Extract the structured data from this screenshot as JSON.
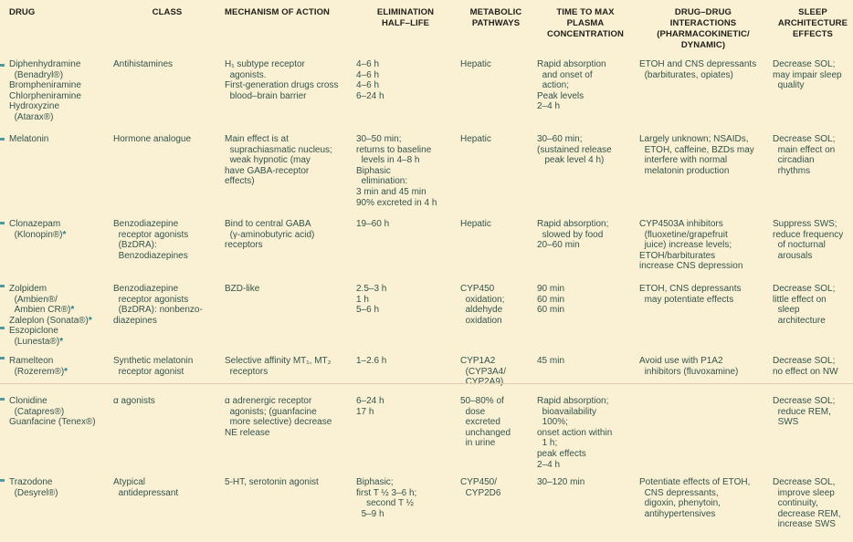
{
  "colors": {
    "background": "#faf1d5",
    "body_text": "#33534a",
    "header_text": "#22201a",
    "asterisk_accent": "#16808f",
    "divider_line": "#e4cbb0",
    "edge_mark": "#2e8b98"
  },
  "table": {
    "columns": [
      {
        "key": "drug",
        "label": "DRUG"
      },
      {
        "key": "class",
        "label": "CLASS"
      },
      {
        "key": "mechanism",
        "label": "MECHANISM OF ACTION"
      },
      {
        "key": "half_life",
        "label": "ELIMINATION\nHALF–LIFE"
      },
      {
        "key": "metabolic",
        "label": "METABOLIC\nPATHWAYS"
      },
      {
        "key": "time_to_max",
        "label": "TIME TO MAX\nPLASMA\nCONCENTRATION"
      },
      {
        "key": "interactions",
        "label": "DRUG–DRUG\nINTERACTIONS\n(PHARMACOKINETIC/\nDYNAMIC)"
      },
      {
        "key": "sleep",
        "label": "SLEEP\nARCHITECTURE\nEFFECTS"
      }
    ],
    "rows": [
      {
        "drug": [
          "Diphenhydramine",
          "  (Benadryl®)",
          "Brompheniramine",
          "Chlorpheniramine",
          "Hydroxyzine",
          "  (Atarax®)"
        ],
        "class": [
          "Antihistamines"
        ],
        "mechanism": [
          "H₁ subtype receptor",
          "  agonists.",
          "First-generation drugs cross",
          "  blood–brain barrier"
        ],
        "half_life": [
          "4–6 h",
          "4–6 h",
          "4–6 h",
          "6–24 h"
        ],
        "metabolic": [
          "Hepatic"
        ],
        "time_to_max": [
          "Rapid absorption",
          "  and onset of",
          "  action;",
          "Peak levels",
          "2–4 h"
        ],
        "interactions": [
          "ETOH and CNS depressants",
          "  (barbiturates, opiates)"
        ],
        "sleep": [
          "Decrease SOL;",
          "may impair sleep",
          "  quality"
        ]
      },
      {
        "drug": [
          "Melatonin"
        ],
        "class": [
          "Hormone analogue"
        ],
        "mechanism": [
          "Main effect is at",
          "  suprachiasmatic nucleus;",
          "  weak hypnotic (may",
          "have GABA-receptor",
          "effects)"
        ],
        "half_life": [
          "30–50 min;",
          "returns to baseline",
          "  levels in 4–8 h",
          "Biphasic",
          "  elimination:",
          "3 min and 45 min",
          "90% excreted in 4 h"
        ],
        "metabolic": [
          "Hepatic"
        ],
        "time_to_max": [
          "30–60 min;",
          "(sustained release",
          "   peak level 4 h)"
        ],
        "interactions": [
          "Largely unknown; NSAIDs,",
          "  ETOH, caffeine, BZDs may",
          "  interfere with normal",
          "  melatonin production"
        ],
        "sleep": [
          "Decrease SOL;",
          "  main effect on",
          "  circadian",
          "  rhythms"
        ]
      },
      {
        "drug": [
          "Clonazepam",
          "  (Klonopin®)*"
        ],
        "class": [
          "Benzodiazepine",
          "  receptor agonists",
          "  (BzDRA):",
          "  Benzodiazepines"
        ],
        "mechanism": [
          "Bind to central GABA",
          "  (γ-aminobutyric acid)",
          "receptors"
        ],
        "half_life": [
          "19–60 h"
        ],
        "metabolic": [
          "Hepatic"
        ],
        "time_to_max": [
          "Rapid absorption;",
          "  slowed by food",
          "20–60 min"
        ],
        "interactions": [
          "CYP4503A inhibitors",
          "  (fluoxetine/grapefruit",
          "  juice) increase levels;",
          "ETOH/barbiturates",
          "increase CNS depression"
        ],
        "sleep": [
          "Suppress SWS;",
          "reduce frequency",
          "  of nocturnal",
          "  arousals"
        ]
      },
      {
        "drug": [
          "Zolpidem",
          "  (Ambien®/",
          "  Ambien CR®)*",
          "Zaleplon (Sonata®)*",
          "Eszopiclone",
          "  (Lunesta®)*"
        ],
        "class": [
          "Benzodiazepine",
          "  receptor agonists",
          "  (BzDRA): nonbenzo-",
          "diazepines"
        ],
        "mechanism": [
          "BZD-like"
        ],
        "half_life": [
          "2.5–3 h",
          "1 h",
          "5–6 h"
        ],
        "metabolic": [
          "CYP450",
          "  oxidation;",
          "  aldehyde",
          "  oxidation"
        ],
        "time_to_max": [
          "90 min",
          "60 min",
          "60 min"
        ],
        "interactions": [
          "ETOH, CNS depressants",
          "  may potentiate effects"
        ],
        "sleep": [
          "Decrease SOL;",
          "little effect on",
          "  sleep",
          "  architecture"
        ]
      },
      {
        "drug": [
          "Ramelteon",
          "  (Rozerem®)*"
        ],
        "class": [
          "Synthetic melatonin",
          "  receptor agonist"
        ],
        "mechanism": [
          "Selective affinity MT₁, MT₂",
          "  receptors"
        ],
        "half_life": [
          "1–2.6 h"
        ],
        "metabolic": [
          "CYP1A2",
          "  (CYP3A4/",
          "  CYP2A9)"
        ],
        "time_to_max": [
          "45 min"
        ],
        "interactions": [
          "Avoid use with P1A2",
          "  inhibitors (fluvoxamine)"
        ],
        "sleep": [
          "Decrease SOL;",
          "no effect on NW"
        ]
      },
      {
        "drug": [
          "Clonidine",
          "  (Catapres®)",
          "Guanfacine (Tenex®)"
        ],
        "class": [
          "α agonists"
        ],
        "mechanism": [
          "α adrenergic receptor",
          "  agonists; (guanfacine",
          "  more selective) decrease",
          "NE release"
        ],
        "half_life": [
          "6–24 h",
          "17 h"
        ],
        "metabolic": [
          "50–80% of",
          "  dose",
          "  excreted",
          "  unchanged",
          "  in urine"
        ],
        "time_to_max": [
          "Rapid absorption;",
          "  bioavailability",
          "  100%;",
          "onset action within",
          "  1 h;",
          "peak effects",
          "2–4 h"
        ],
        "interactions": [],
        "sleep": [
          "Decrease SOL;",
          "  reduce REM,",
          "  SWS"
        ]
      },
      {
        "drug": [
          "Trazodone",
          "  (Desyrel®)"
        ],
        "class": [
          "Atypical",
          "  antidepressant"
        ],
        "mechanism": [
          "5-HT, serotonin agonist"
        ],
        "half_life": [
          "Biphasic;",
          "first T ½ 3–6 h;",
          "    second T ½",
          "  5–9 h"
        ],
        "metabolic": [
          "CYP450/",
          "  CYP2D6"
        ],
        "time_to_max": [
          "30–120 min"
        ],
        "interactions": [
          "Potentiate effects of ETOH,",
          "  CNS depressants,",
          "  digoxin, phenytoin,",
          "  antihypertensives"
        ],
        "sleep": [
          "Decrease SOL,",
          "  improve sleep",
          "  continuity,",
          "  decrease REM,",
          "  increase SWS"
        ]
      }
    ]
  }
}
